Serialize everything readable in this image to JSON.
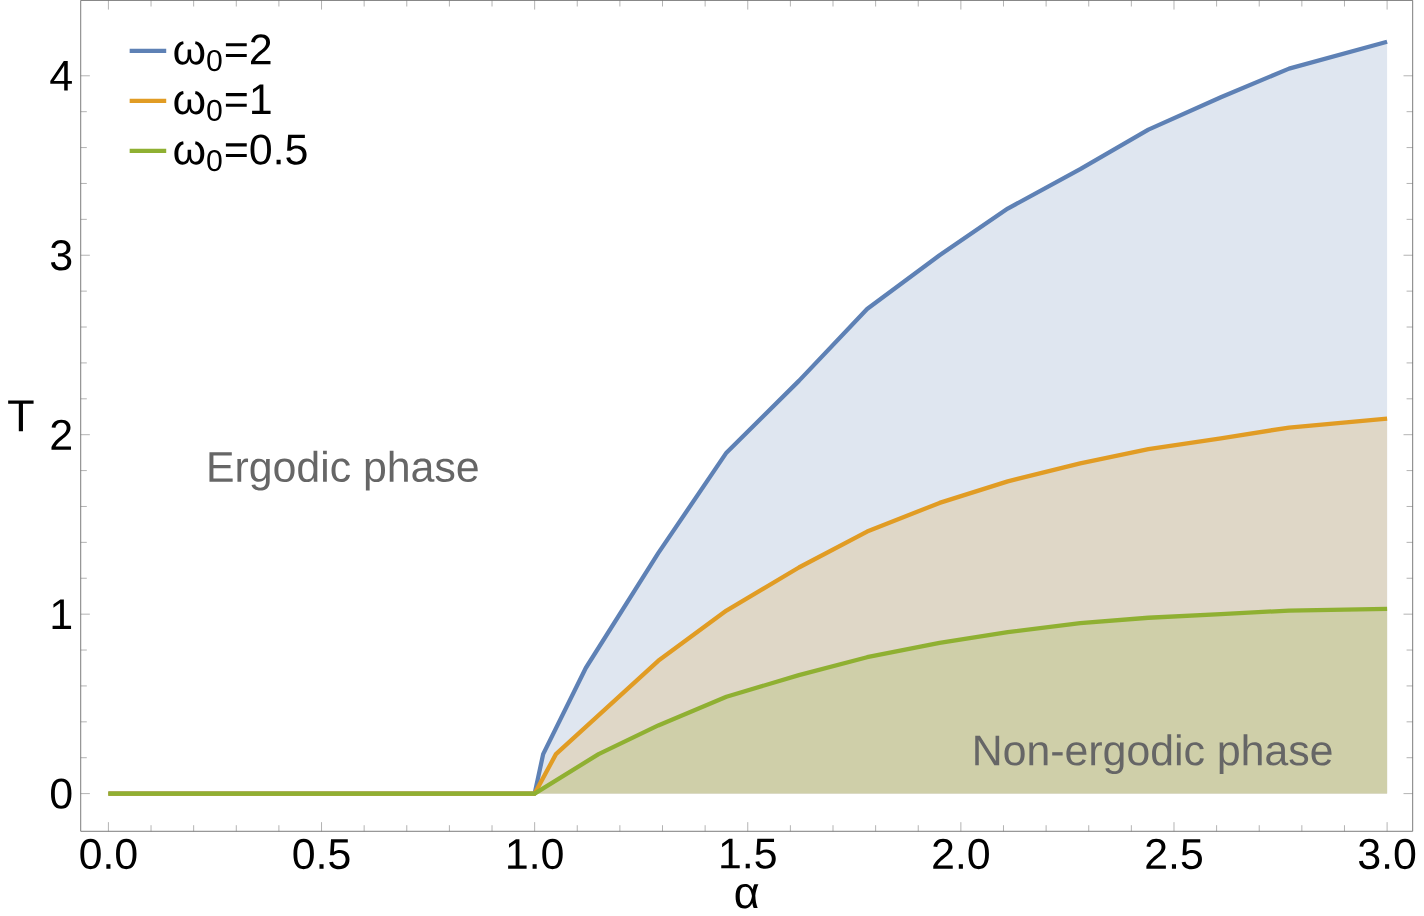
{
  "chart_data": {
    "type": "area",
    "xlabel": "α",
    "ylabel": "T",
    "xlim": [
      -0.065,
      3.06
    ],
    "ylim": [
      -0.21,
      4.42
    ],
    "xticks": [
      {
        "value": 0,
        "label": "0.0"
      },
      {
        "value": 0.5,
        "label": "0.5"
      },
      {
        "value": 1,
        "label": "1.0"
      },
      {
        "value": 1.5,
        "label": "1.5"
      },
      {
        "value": 2,
        "label": "2.0"
      },
      {
        "value": 2.5,
        "label": "2.5"
      },
      {
        "value": 3,
        "label": "3.0"
      }
    ],
    "yticks": [
      0,
      1,
      2,
      3,
      4
    ],
    "legend": "top left",
    "annotations": [
      "Ergodic phase",
      "Non-ergodic phase"
    ],
    "series": [
      {
        "name": "ω$_{0}$=2",
        "color": "#5e81b5",
        "x": [
          0,
          1,
          1.02,
          1.12,
          1.29,
          1.45,
          1.62,
          1.78,
          1.95,
          2.11,
          2.28,
          2.44,
          2.61,
          2.77,
          3
        ],
        "values": [
          0,
          0,
          0.22,
          0.7,
          1.34,
          1.9,
          2.3,
          2.7,
          3.0,
          3.26,
          3.48,
          3.7,
          3.88,
          4.04,
          4.19
        ]
      },
      {
        "name": "ω$_{0}$=1",
        "color": "#e19c24",
        "x": [
          0,
          1,
          1.05,
          1.29,
          1.45,
          1.62,
          1.78,
          1.95,
          2.11,
          2.28,
          2.44,
          2.61,
          2.77,
          3
        ],
        "values": [
          0,
          0,
          0.22,
          0.74,
          1.02,
          1.26,
          1.46,
          1.62,
          1.74,
          1.84,
          1.92,
          1.98,
          2.04,
          2.09
        ]
      },
      {
        "name": "ω$_{0}$=0.5",
        "color": "#8fb032",
        "x": [
          0,
          1,
          1.15,
          1.29,
          1.45,
          1.62,
          1.78,
          1.95,
          2.11,
          2.28,
          2.44,
          2.61,
          2.77,
          3
        ],
        "values": [
          0,
          0,
          0.22,
          0.38,
          0.54,
          0.66,
          0.76,
          0.84,
          0.9,
          0.95,
          0.98,
          1.0,
          1.02,
          1.03
        ]
      }
    ]
  }
}
